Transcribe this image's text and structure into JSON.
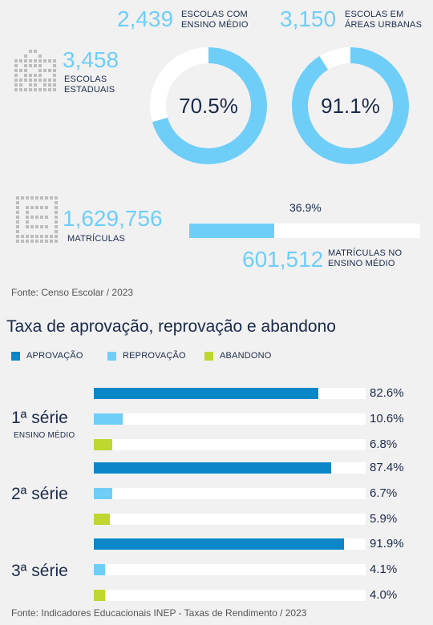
{
  "colors": {
    "accent": "#6fcef8",
    "aprovacao": "#0b86c9",
    "reprovacao": "#6fcef8",
    "abandono": "#bfd72f",
    "track": "#ffffff",
    "text": "#1b2a4a"
  },
  "stats": {
    "escolas_estaduais": {
      "value": "3,458",
      "label": "ESCOLAS ESTADUAIS"
    },
    "ensino_medio": {
      "value": "2,439",
      "label": "ESCOLAS COM ENSINO MÉDIO",
      "percent_text": "70.5%",
      "percent": 70.5
    },
    "areas_urbanas": {
      "value": "3,150",
      "label": "ESCOLAS EM ÁREAS URBANAS",
      "percent_text": "91.1%",
      "percent": 91.1
    },
    "matriculas": {
      "value": "1,629,756",
      "label": "MATRÍCULAS"
    },
    "matriculas_em": {
      "value": "601,512",
      "label": "MATRÍCULAS NO ENSINO MÉDIO",
      "percent_text": "36.9%",
      "percent": 36.9
    }
  },
  "source1": "Fonte: Censo Escolar / 2023",
  "section_title": "Taxa de aprovação, reprovação e abandono",
  "legend": [
    "APROVAÇÃO",
    "REPROVAÇÃO",
    "ABANDONO"
  ],
  "rows": [
    {
      "label": "1ª série",
      "sublabel": "ENSINO MÉDIO"
    },
    {
      "label": "2ª série",
      "sublabel": ""
    },
    {
      "label": "3ª série",
      "sublabel": ""
    }
  ],
  "source2": "Fonte: Indicadores Educacionais INEP - Taxas de Rendimento / 2023",
  "chart_data": {
    "type": "bar",
    "title": "Taxa de aprovação, reprovação e abandono",
    "categories": [
      "1ª série",
      "2ª série",
      "3ª série"
    ],
    "series": [
      {
        "name": "APROVAÇÃO",
        "values": [
          82.6,
          87.4,
          91.9
        ],
        "labels": [
          "82.6%",
          "87.4%",
          "91.9%"
        ]
      },
      {
        "name": "REPROVAÇÃO",
        "values": [
          10.6,
          6.7,
          4.1
        ],
        "labels": [
          "10.6%",
          "6.7%",
          "4.1%"
        ]
      },
      {
        "name": "ABANDONO",
        "values": [
          6.8,
          5.9,
          4.0
        ],
        "labels": [
          "6.8%",
          "5.9%",
          "4.0%"
        ]
      }
    ],
    "xlim": [
      0,
      100
    ],
    "legend_position": "top-left",
    "grid": false
  }
}
